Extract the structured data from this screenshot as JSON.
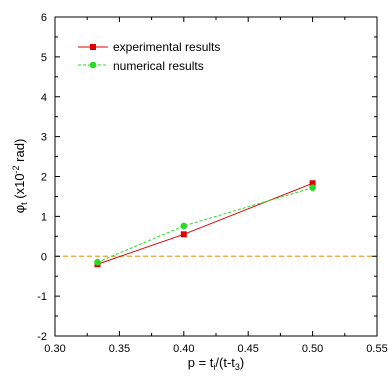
{
  "chart_data": {
    "type": "line",
    "xlim": [
      0.3,
      0.55
    ],
    "ylim": [
      -2,
      6
    ],
    "xticks": [
      "0.30",
      "0.35",
      "0.40",
      "0.45",
      "0.50",
      "0.55"
    ],
    "yticks": [
      "-2",
      "-1",
      "0",
      "1",
      "2",
      "3",
      "4",
      "5",
      "6"
    ],
    "xlabel": {
      "main": "p = t",
      "sub1": "i",
      "mid": "/(t-t",
      "sub2": "3",
      "end": ")"
    },
    "ylabel": {
      "main": "φ",
      "sub": "t",
      "pre": " (x10",
      "sup": "-2",
      "post": " rad)"
    },
    "reference_line_y": 0,
    "grid": false,
    "legend_position": "top-left",
    "series": [
      {
        "name": "experimental results",
        "color": "#e00000",
        "marker": "square",
        "x": [
          0.333,
          0.4,
          0.5
        ],
        "y": [
          -0.2,
          0.55,
          1.83
        ]
      },
      {
        "name": "numerical results",
        "color": "#22dd22",
        "marker": "circle",
        "x": [
          0.333,
          0.4,
          0.5
        ],
        "y": [
          -0.15,
          0.76,
          1.72
        ]
      }
    ],
    "reference_color": "#f0a020"
  }
}
